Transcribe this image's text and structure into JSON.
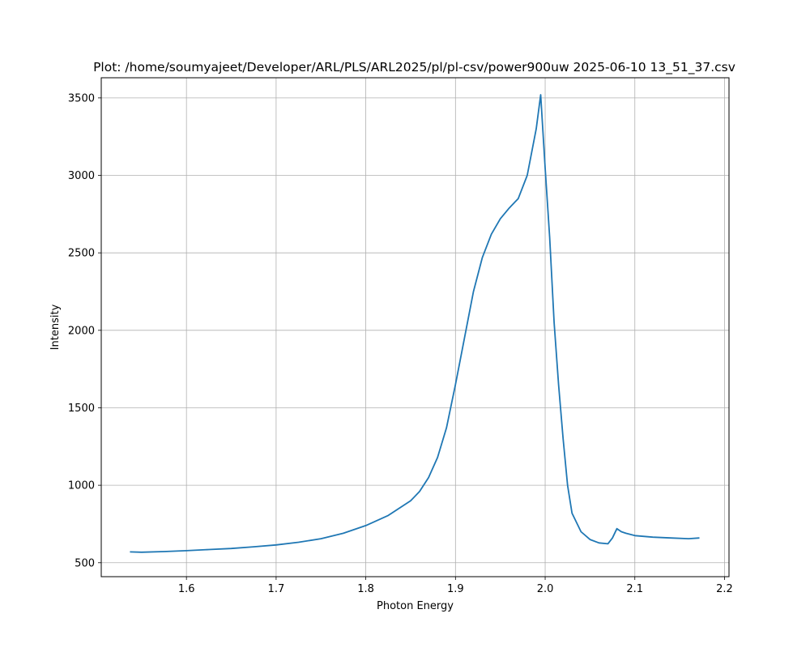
{
  "chart_data": {
    "type": "line",
    "title": "Plot: /home/soumyajeet/Developer/ARL/PLS/ARL2025/pl/pl-csv/power900uw 2025-06-10 13_51_37.csv",
    "xlabel": "Photon Energy",
    "ylabel": "Intensity",
    "xlim": [
      1.505,
      2.205
    ],
    "ylim": [
      410,
      3630
    ],
    "xticks": [
      1.6,
      1.7,
      1.8,
      1.9,
      2.0,
      2.1,
      2.2
    ],
    "xtick_labels": [
      "1.6",
      "1.7",
      "1.8",
      "1.9",
      "2.0",
      "2.1",
      "2.2"
    ],
    "yticks": [
      500,
      1000,
      1500,
      2000,
      2500,
      3000,
      3500
    ],
    "ytick_labels": [
      "500",
      "1000",
      "1500",
      "2000",
      "2500",
      "3000",
      "3500"
    ],
    "grid": true,
    "legend": "none",
    "series_color": "#1f77b4",
    "x": [
      1.537,
      1.55,
      1.575,
      1.6,
      1.625,
      1.65,
      1.675,
      1.7,
      1.725,
      1.75,
      1.775,
      1.8,
      1.825,
      1.85,
      1.86,
      1.87,
      1.88,
      1.89,
      1.9,
      1.91,
      1.92,
      1.93,
      1.94,
      1.95,
      1.96,
      1.97,
      1.98,
      1.99,
      1.995,
      2.0,
      2.005,
      2.01,
      2.015,
      2.02,
      2.025,
      2.03,
      2.04,
      2.05,
      2.06,
      2.07,
      2.075,
      2.08,
      2.085,
      2.09,
      2.1,
      2.12,
      2.14,
      2.16,
      2.172
    ],
    "values": [
      570,
      568,
      572,
      578,
      585,
      592,
      603,
      615,
      632,
      655,
      690,
      740,
      805,
      900,
      960,
      1050,
      1180,
      1370,
      1650,
      1950,
      2250,
      2470,
      2620,
      2720,
      2790,
      2850,
      3000,
      3300,
      3520,
      3050,
      2600,
      2050,
      1650,
      1300,
      1000,
      820,
      700,
      650,
      628,
      622,
      660,
      720,
      700,
      690,
      675,
      665,
      660,
      655,
      660
    ]
  }
}
